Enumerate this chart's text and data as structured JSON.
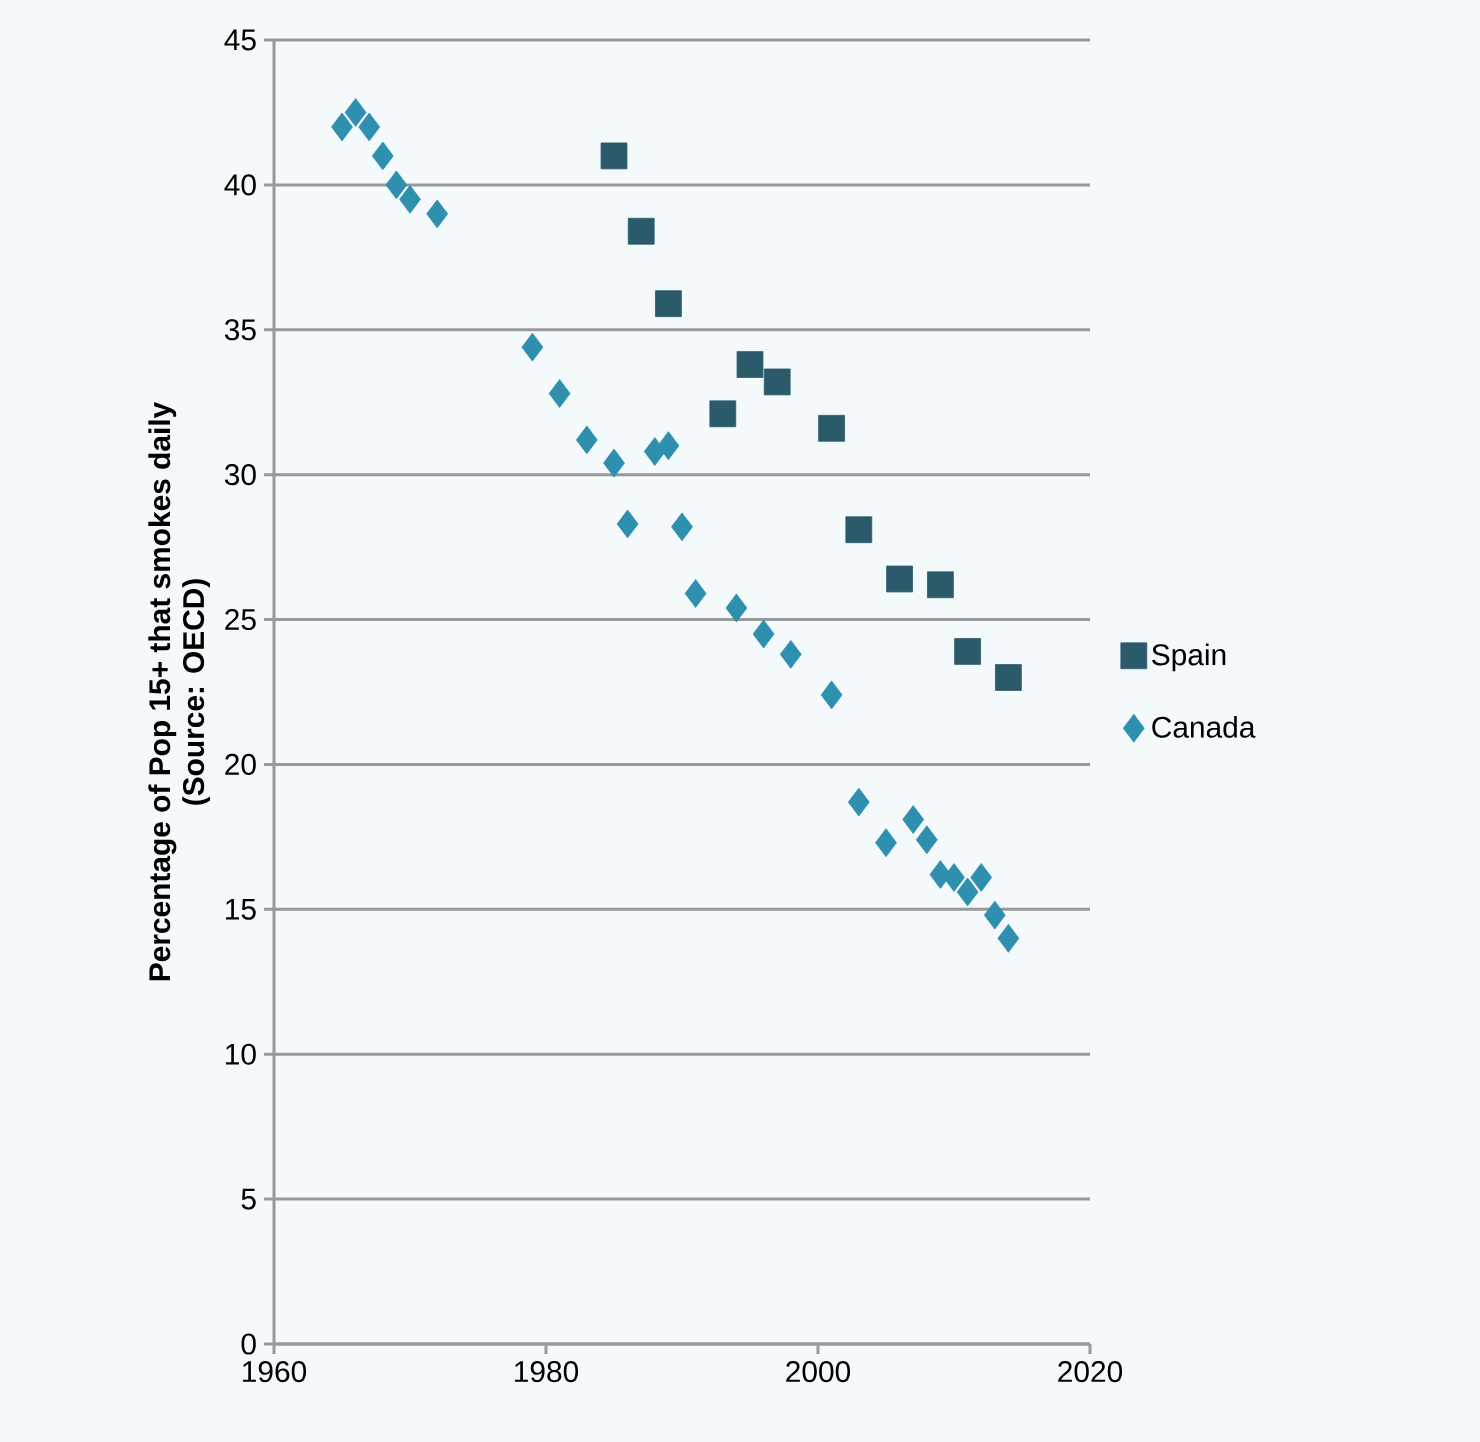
{
  "chart_data": {
    "type": "scatter",
    "ylabel": "Percentage of Pop 15+  that smokes daily\n(Source: OECD)",
    "xlim": [
      1960,
      2020
    ],
    "xticks": [
      1960,
      1980,
      2000,
      2020
    ],
    "ylim": [
      0,
      45
    ],
    "yticks": [
      0,
      5,
      10,
      15,
      20,
      25,
      30,
      35,
      40,
      45
    ],
    "grid": "y",
    "legend": "right",
    "series": [
      {
        "name": "Spain",
        "color": "#2b5b6b",
        "marker": "square",
        "x": [
          1985,
          1987,
          1989,
          1993,
          1995,
          1997,
          2001,
          2003,
          2006,
          2009,
          2011,
          2014
        ],
        "values": [
          41,
          38.4,
          35.9,
          32.1,
          33.8,
          33.2,
          31.6,
          28.1,
          26.4,
          26.2,
          23.9,
          23.0
        ]
      },
      {
        "name": "Canada",
        "color": "#2e8fae",
        "marker": "diamond",
        "x": [
          1965,
          1966,
          1967,
          1968,
          1969,
          1970,
          1972,
          1979,
          1981,
          1983,
          1985,
          1986,
          1988,
          1989,
          1990,
          1991,
          1994,
          1996,
          1998,
          2001,
          2003,
          2005,
          2007,
          2008,
          2009,
          2010,
          2011,
          2012,
          2013,
          2014
        ],
        "values": [
          42,
          42.5,
          42,
          41,
          40,
          39.5,
          39,
          34.4,
          32.8,
          31.2,
          30.4,
          28.3,
          30.8,
          31,
          28.2,
          25.9,
          25.4,
          24.5,
          23.8,
          22.4,
          18.7,
          17.3,
          18.1,
          17.4,
          16.2,
          16.1,
          15.6,
          16.1,
          14.8,
          14.0
        ]
      }
    ]
  }
}
